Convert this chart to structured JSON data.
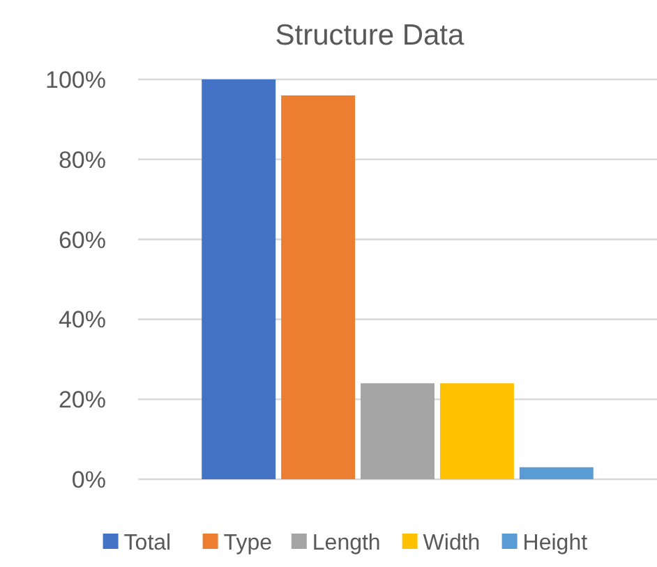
{
  "chart_data": {
    "type": "bar",
    "title": "Structure Data",
    "categories": [
      null
    ],
    "series": [
      {
        "name": "Total",
        "color": "#4472c4",
        "values": [
          100
        ]
      },
      {
        "name": "Type",
        "color": "#ed7d31",
        "values": [
          96
        ]
      },
      {
        "name": "Length",
        "color": "#a5a5a5",
        "values": [
          24
        ]
      },
      {
        "name": "Width",
        "color": "#ffc000",
        "values": [
          24
        ]
      },
      {
        "name": "Height",
        "color": "#5b9bd5",
        "values": [
          3
        ]
      }
    ],
    "ylim": [
      0,
      100
    ],
    "yticks": [
      {
        "value": 0,
        "label": "0%"
      },
      {
        "value": 20,
        "label": "20%"
      },
      {
        "value": 40,
        "label": "40%"
      },
      {
        "value": 60,
        "label": "60%"
      },
      {
        "value": 80,
        "label": "80%"
      },
      {
        "value": 100,
        "label": "100%"
      }
    ],
    "grid": "y",
    "legend": "bottom"
  }
}
